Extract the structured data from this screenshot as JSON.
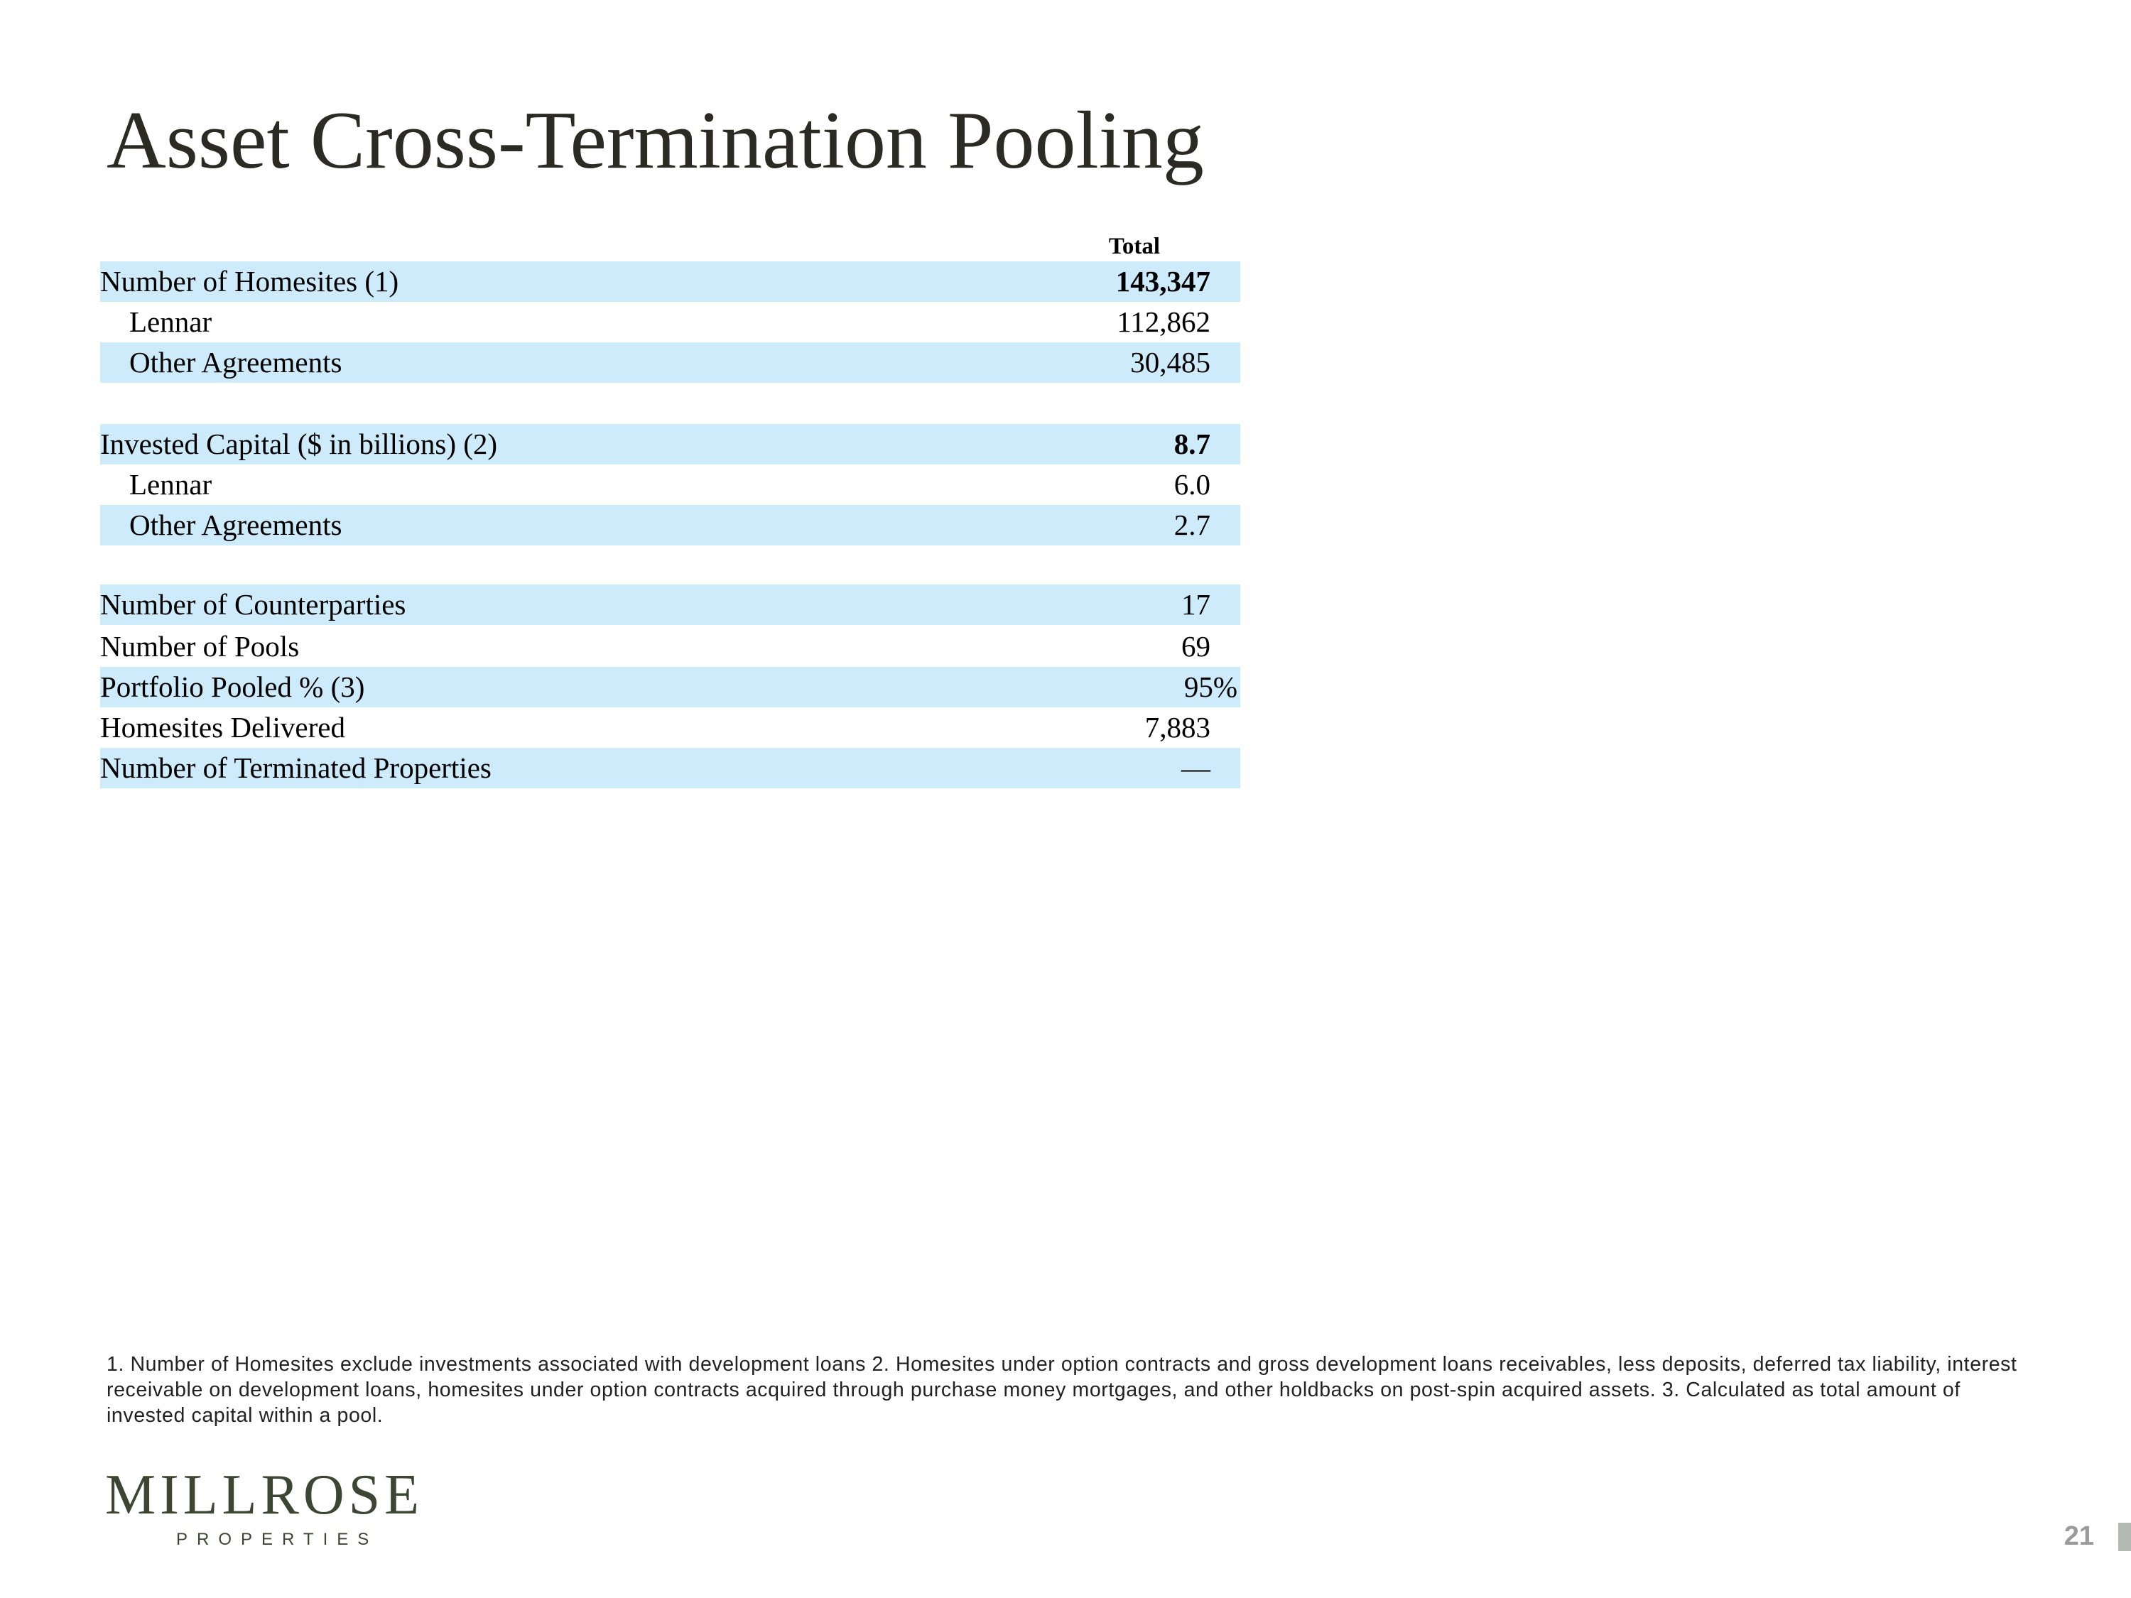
{
  "title": "Asset Cross-Termination Pooling",
  "table": {
    "column_header": "Total",
    "rows": [
      {
        "label": "Number of Homesites (1)",
        "value": "143,347"
      },
      {
        "label": "Lennar",
        "value": "112,862"
      },
      {
        "label": "Other Agreements",
        "value": "30,485"
      },
      {
        "label": "Invested Capital ($ in billions) (2)",
        "value": "8.7"
      },
      {
        "label": "Lennar",
        "value": "6.0"
      },
      {
        "label": "Other Agreements",
        "value": "2.7"
      },
      {
        "label": "Number of Counterparties",
        "value": "17"
      },
      {
        "label": "Number of Pools",
        "value": "69"
      },
      {
        "label": "Portfolio Pooled % (3)",
        "value": "95%"
      },
      {
        "label": "Homesites Delivered",
        "value": "7,883"
      },
      {
        "label": "Number of Terminated Properties",
        "value": "—"
      }
    ]
  },
  "footnote": "1. Number of Homesites exclude investments associated with development loans  2. Homesites under option contracts and gross development loans receivables, less deposits, deferred tax liability, interest receivable on development loans, homesites under option contracts acquired through purchase money mortgages, and other holdbacks on post-spin acquired assets. 3. Calculated as total amount of invested capital within a pool.",
  "logo": {
    "name": "MILLROSE",
    "subtitle": "PROPERTIES"
  },
  "page_number": "21",
  "colors": {
    "row_highlight": "#cdebfa",
    "title": "#2b2b23",
    "logo": "#3c4632"
  }
}
